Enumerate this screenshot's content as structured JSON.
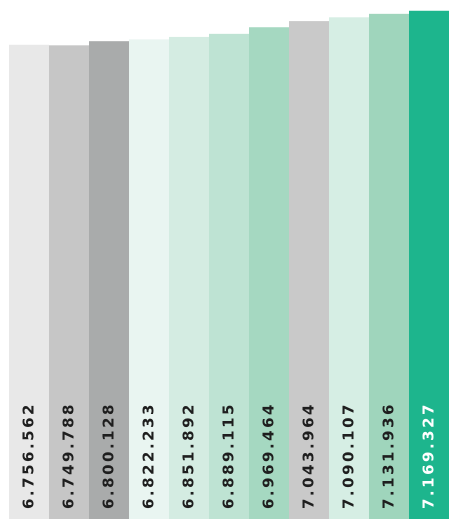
{
  "chart_data": {
    "type": "bar",
    "categories": [
      null,
      null,
      null,
      null,
      null,
      null,
      null,
      null,
      null,
      null,
      null
    ],
    "values": [
      6756562,
      6749788,
      6800128,
      6822233,
      6851892,
      6889115,
      6969464,
      7043964,
      7090107,
      7131936,
      7169327
    ],
    "value_labels": [
      "6.756.562",
      "6.749.788",
      "6.800.128",
      "6.822.233",
      "6.851.892",
      "6.889.115",
      "6.969.464",
      "7.043.964",
      "7.090.107",
      "7.131.936",
      "7.169.327"
    ],
    "colors": [
      "#e8e8e8",
      "#c6c6c6",
      "#a9abab",
      "#e9f5f1",
      "#d4ece2",
      "#bee3d3",
      "#a5d8c1",
      "#c9c9c9",
      "#d6eee4",
      "#9fd5bc",
      "#1db58d"
    ],
    "label_colors": [
      "#1e1e1e",
      "#1e1e1e",
      "#1e1e1e",
      "#1e1e1e",
      "#1e1e1e",
      "#1e1e1e",
      "#1e1e1e",
      "#1e1e1e",
      "#1e1e1e",
      "#1e1e1e",
      "#ffffff"
    ],
    "ylim": [
      1000000,
      7300000
    ]
  }
}
